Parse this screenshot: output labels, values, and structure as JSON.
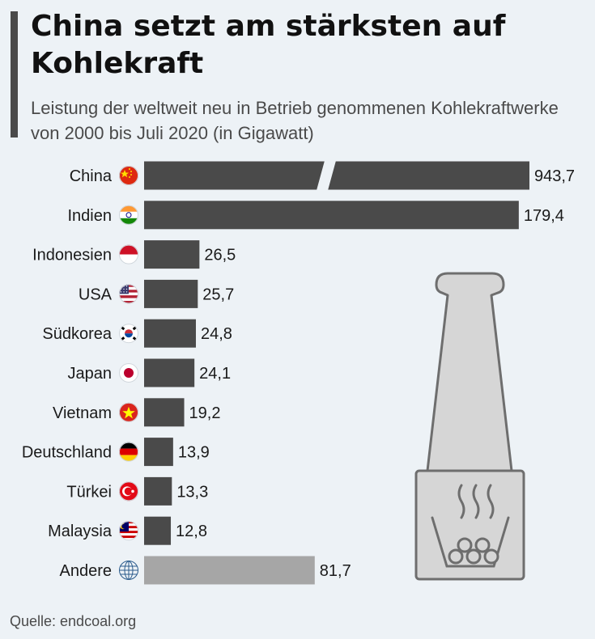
{
  "title": "China setzt am stärksten auf Kohlekraft",
  "subtitle": "Leistung der weltweit neu in Betrieb genommenen Kohlekraftwerke von 2000 bis Juli 2020 (in Gigawatt)",
  "source": "Quelle: endcoal.org",
  "colors": {
    "bar": "#4a4a4a",
    "bar_other": "#a6a6a6",
    "background": "#edf2f6"
  },
  "chart_data": {
    "type": "bar",
    "orientation": "horizontal",
    "title": "China setzt am stärksten auf Kohlekraft",
    "xlabel": "",
    "ylabel": "",
    "unit": "Gigawatt",
    "axis_break_after": 200,
    "categories": [
      "China",
      "Indien",
      "Indonesien",
      "USA",
      "Südkorea",
      "Japan",
      "Vietnam",
      "Deutschland",
      "Türkei",
      "Malaysia",
      "Andere"
    ],
    "values": [
      943.7,
      179.4,
      26.5,
      25.7,
      24.8,
      24.1,
      19.2,
      13.9,
      13.3,
      12.8,
      81.7
    ],
    "value_labels": [
      "943,7",
      "179,4",
      "26,5",
      "25,7",
      "24,8",
      "24,1",
      "19,2",
      "13,9",
      "13,3",
      "12,8",
      "81,7"
    ],
    "flags": [
      "china-flag-icon",
      "india-flag-icon",
      "indonesia-flag-icon",
      "usa-flag-icon",
      "south-korea-flag-icon",
      "japan-flag-icon",
      "vietnam-flag-icon",
      "germany-flag-icon",
      "turkey-flag-icon",
      "malaysia-flag-icon",
      "globe-icon"
    ]
  }
}
